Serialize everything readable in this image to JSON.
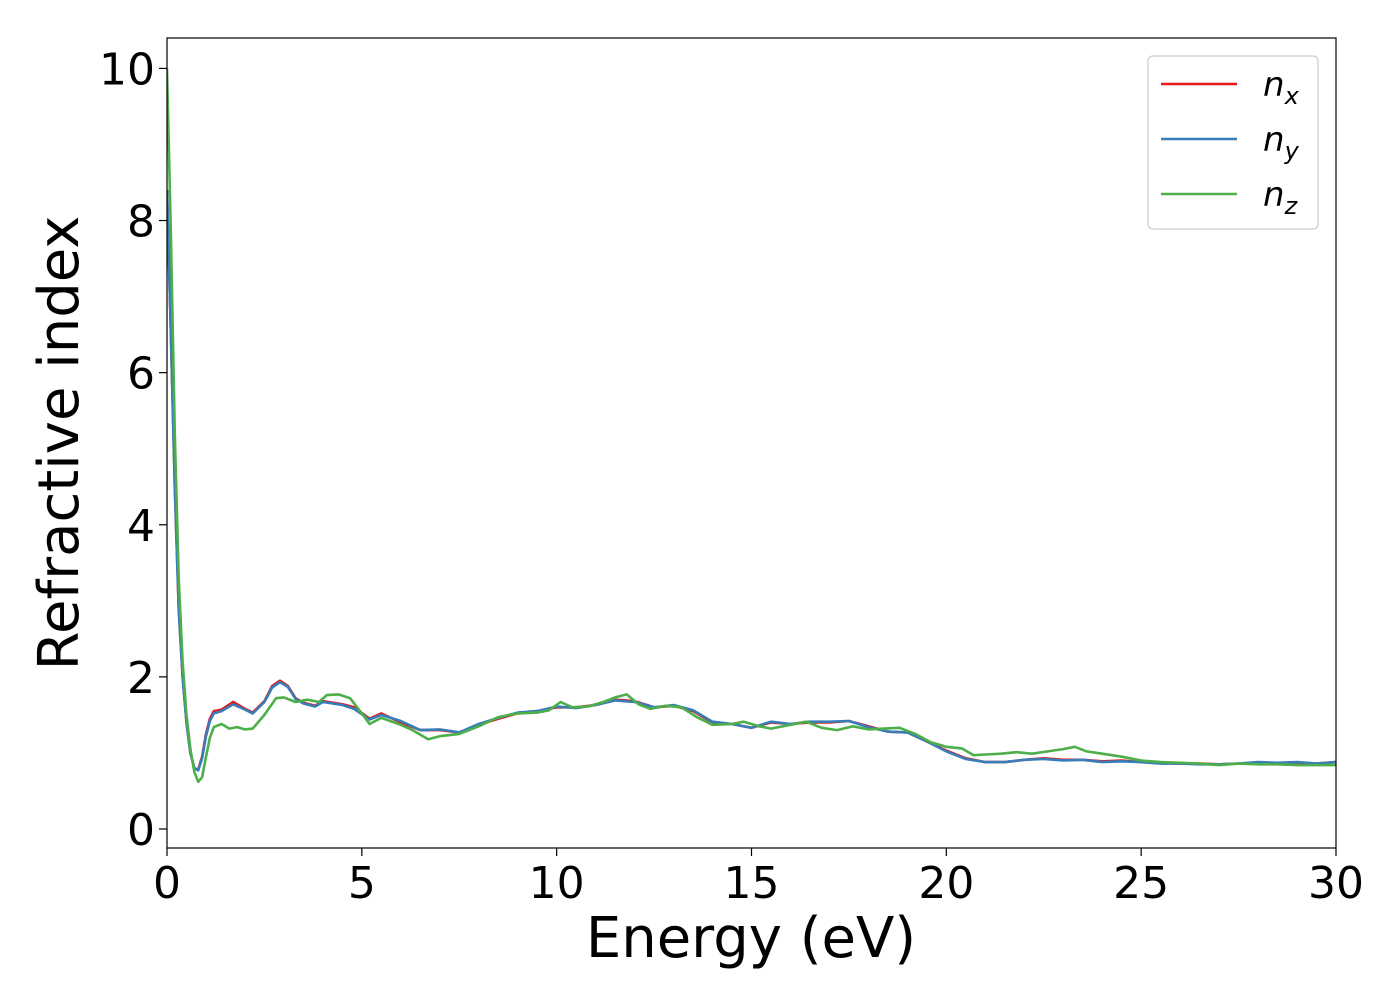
{
  "chart_data": {
    "type": "line",
    "xlabel": "Energy (eV)",
    "ylabel": "Refractive index",
    "xlim": [
      0,
      30
    ],
    "ylim": [
      -0.25,
      10.4
    ],
    "xticks": [
      0,
      5,
      10,
      15,
      20,
      25,
      30
    ],
    "yticks": [
      0,
      2,
      4,
      6,
      8,
      10
    ],
    "grid": false,
    "legend_position": "top-right",
    "series": [
      {
        "name": "n",
        "sub": "x",
        "color": "#e41a1c",
        "points": [
          [
            0,
            8.4
          ],
          [
            0.1,
            6.5
          ],
          [
            0.2,
            4.5
          ],
          [
            0.3,
            2.9
          ],
          [
            0.4,
            2.0
          ],
          [
            0.5,
            1.4
          ],
          [
            0.6,
            1.0
          ],
          [
            0.7,
            0.8
          ],
          [
            0.8,
            0.78
          ],
          [
            0.9,
            0.95
          ],
          [
            1.0,
            1.25
          ],
          [
            1.1,
            1.45
          ],
          [
            1.2,
            1.55
          ],
          [
            1.4,
            1.57
          ],
          [
            1.7,
            1.67
          ],
          [
            2.0,
            1.58
          ],
          [
            2.2,
            1.53
          ],
          [
            2.5,
            1.68
          ],
          [
            2.7,
            1.88
          ],
          [
            2.9,
            1.95
          ],
          [
            3.1,
            1.88
          ],
          [
            3.3,
            1.72
          ],
          [
            3.5,
            1.66
          ],
          [
            3.8,
            1.62
          ],
          [
            4.0,
            1.68
          ],
          [
            4.5,
            1.64
          ],
          [
            4.8,
            1.6
          ],
          [
            5.2,
            1.45
          ],
          [
            5.5,
            1.52
          ],
          [
            6.0,
            1.4
          ],
          [
            6.5,
            1.3
          ],
          [
            7.0,
            1.3
          ],
          [
            7.5,
            1.27
          ],
          [
            8.0,
            1.37
          ],
          [
            8.5,
            1.45
          ],
          [
            9.0,
            1.52
          ],
          [
            9.5,
            1.55
          ],
          [
            10.0,
            1.6
          ],
          [
            10.5,
            1.6
          ],
          [
            11.0,
            1.63
          ],
          [
            11.5,
            1.7
          ],
          [
            12.0,
            1.68
          ],
          [
            12.5,
            1.6
          ],
          [
            13.0,
            1.62
          ],
          [
            13.5,
            1.55
          ],
          [
            14.0,
            1.4
          ],
          [
            14.5,
            1.38
          ],
          [
            15.0,
            1.33
          ],
          [
            15.5,
            1.4
          ],
          [
            16.0,
            1.38
          ],
          [
            16.5,
            1.4
          ],
          [
            17.0,
            1.4
          ],
          [
            17.5,
            1.42
          ],
          [
            18.0,
            1.35
          ],
          [
            18.5,
            1.28
          ],
          [
            19.0,
            1.27
          ],
          [
            19.5,
            1.15
          ],
          [
            20.0,
            1.03
          ],
          [
            20.5,
            0.93
          ],
          [
            21.0,
            0.88
          ],
          [
            21.5,
            0.88
          ],
          [
            22.0,
            0.91
          ],
          [
            22.5,
            0.93
          ],
          [
            23.0,
            0.91
          ],
          [
            23.5,
            0.91
          ],
          [
            24.0,
            0.89
          ],
          [
            24.5,
            0.9
          ],
          [
            25.0,
            0.88
          ],
          [
            25.5,
            0.87
          ],
          [
            26.0,
            0.86
          ],
          [
            26.5,
            0.86
          ],
          [
            27.0,
            0.85
          ],
          [
            27.5,
            0.86
          ],
          [
            28.0,
            0.87
          ],
          [
            28.5,
            0.87
          ],
          [
            29.0,
            0.87
          ],
          [
            29.5,
            0.86
          ],
          [
            30.0,
            0.88
          ]
        ]
      },
      {
        "name": "n",
        "sub": "y",
        "color": "#377eb8",
        "points": [
          [
            0,
            8.4
          ],
          [
            0.1,
            6.5
          ],
          [
            0.2,
            4.5
          ],
          [
            0.3,
            2.9
          ],
          [
            0.4,
            2.0
          ],
          [
            0.5,
            1.4
          ],
          [
            0.6,
            1.0
          ],
          [
            0.7,
            0.8
          ],
          [
            0.8,
            0.77
          ],
          [
            0.9,
            0.93
          ],
          [
            1.0,
            1.22
          ],
          [
            1.1,
            1.42
          ],
          [
            1.2,
            1.52
          ],
          [
            1.4,
            1.55
          ],
          [
            1.7,
            1.64
          ],
          [
            2.0,
            1.57
          ],
          [
            2.2,
            1.52
          ],
          [
            2.5,
            1.67
          ],
          [
            2.7,
            1.86
          ],
          [
            2.9,
            1.93
          ],
          [
            3.1,
            1.87
          ],
          [
            3.3,
            1.71
          ],
          [
            3.5,
            1.65
          ],
          [
            3.8,
            1.61
          ],
          [
            4.0,
            1.67
          ],
          [
            4.5,
            1.63
          ],
          [
            4.8,
            1.58
          ],
          [
            5.2,
            1.44
          ],
          [
            5.5,
            1.5
          ],
          [
            6.0,
            1.42
          ],
          [
            6.5,
            1.3
          ],
          [
            7.0,
            1.31
          ],
          [
            7.5,
            1.27
          ],
          [
            8.0,
            1.38
          ],
          [
            8.5,
            1.46
          ],
          [
            9.0,
            1.53
          ],
          [
            9.5,
            1.55
          ],
          [
            10.0,
            1.61
          ],
          [
            10.5,
            1.59
          ],
          [
            11.0,
            1.63
          ],
          [
            11.5,
            1.69
          ],
          [
            12.0,
            1.67
          ],
          [
            12.5,
            1.6
          ],
          [
            13.0,
            1.63
          ],
          [
            13.5,
            1.56
          ],
          [
            14.0,
            1.41
          ],
          [
            14.5,
            1.38
          ],
          [
            15.0,
            1.33
          ],
          [
            15.5,
            1.41
          ],
          [
            16.0,
            1.38
          ],
          [
            16.5,
            1.41
          ],
          [
            17.0,
            1.41
          ],
          [
            17.5,
            1.42
          ],
          [
            18.0,
            1.34
          ],
          [
            18.5,
            1.28
          ],
          [
            19.0,
            1.27
          ],
          [
            19.5,
            1.15
          ],
          [
            20.0,
            1.02
          ],
          [
            20.5,
            0.92
          ],
          [
            21.0,
            0.88
          ],
          [
            21.5,
            0.88
          ],
          [
            22.0,
            0.91
          ],
          [
            22.5,
            0.92
          ],
          [
            23.0,
            0.9
          ],
          [
            23.5,
            0.91
          ],
          [
            24.0,
            0.88
          ],
          [
            24.5,
            0.89
          ],
          [
            25.0,
            0.88
          ],
          [
            25.5,
            0.86
          ],
          [
            26.0,
            0.86
          ],
          [
            26.5,
            0.85
          ],
          [
            27.0,
            0.85
          ],
          [
            27.5,
            0.86
          ],
          [
            28.0,
            0.88
          ],
          [
            28.5,
            0.87
          ],
          [
            29.0,
            0.88
          ],
          [
            29.5,
            0.86
          ],
          [
            30.0,
            0.88
          ]
        ]
      },
      {
        "name": "n",
        "sub": "z",
        "color": "#4daf4a",
        "points": [
          [
            0,
            10.0
          ],
          [
            0.1,
            7.8
          ],
          [
            0.2,
            5.2
          ],
          [
            0.3,
            3.3
          ],
          [
            0.4,
            2.2
          ],
          [
            0.5,
            1.5
          ],
          [
            0.6,
            1.05
          ],
          [
            0.7,
            0.75
          ],
          [
            0.8,
            0.62
          ],
          [
            0.9,
            0.68
          ],
          [
            1.0,
            0.95
          ],
          [
            1.1,
            1.2
          ],
          [
            1.2,
            1.34
          ],
          [
            1.4,
            1.38
          ],
          [
            1.6,
            1.32
          ],
          [
            1.8,
            1.34
          ],
          [
            2.0,
            1.31
          ],
          [
            2.2,
            1.32
          ],
          [
            2.5,
            1.5
          ],
          [
            2.8,
            1.72
          ],
          [
            3.0,
            1.73
          ],
          [
            3.3,
            1.67
          ],
          [
            3.6,
            1.7
          ],
          [
            3.9,
            1.67
          ],
          [
            4.1,
            1.76
          ],
          [
            4.4,
            1.77
          ],
          [
            4.7,
            1.72
          ],
          [
            5.0,
            1.52
          ],
          [
            5.2,
            1.38
          ],
          [
            5.5,
            1.46
          ],
          [
            6.0,
            1.37
          ],
          [
            6.3,
            1.3
          ],
          [
            6.7,
            1.18
          ],
          [
            7.0,
            1.22
          ],
          [
            7.5,
            1.25
          ],
          [
            8.0,
            1.35
          ],
          [
            8.5,
            1.47
          ],
          [
            9.0,
            1.52
          ],
          [
            9.5,
            1.53
          ],
          [
            9.8,
            1.56
          ],
          [
            10.1,
            1.67
          ],
          [
            10.4,
            1.6
          ],
          [
            10.8,
            1.61
          ],
          [
            11.2,
            1.67
          ],
          [
            11.5,
            1.73
          ],
          [
            11.8,
            1.77
          ],
          [
            12.1,
            1.64
          ],
          [
            12.4,
            1.58
          ],
          [
            12.8,
            1.62
          ],
          [
            13.2,
            1.6
          ],
          [
            13.6,
            1.47
          ],
          [
            14.0,
            1.37
          ],
          [
            14.5,
            1.38
          ],
          [
            14.8,
            1.41
          ],
          [
            15.2,
            1.35
          ],
          [
            15.5,
            1.32
          ],
          [
            16.0,
            1.37
          ],
          [
            16.4,
            1.41
          ],
          [
            16.8,
            1.33
          ],
          [
            17.2,
            1.3
          ],
          [
            17.6,
            1.35
          ],
          [
            18.0,
            1.31
          ],
          [
            18.4,
            1.32
          ],
          [
            18.8,
            1.33
          ],
          [
            19.2,
            1.25
          ],
          [
            19.6,
            1.14
          ],
          [
            20.0,
            1.08
          ],
          [
            20.4,
            1.06
          ],
          [
            20.7,
            0.97
          ],
          [
            21.0,
            0.98
          ],
          [
            21.4,
            0.99
          ],
          [
            21.8,
            1.01
          ],
          [
            22.2,
            0.99
          ],
          [
            22.6,
            1.02
          ],
          [
            23.0,
            1.05
          ],
          [
            23.3,
            1.08
          ],
          [
            23.6,
            1.02
          ],
          [
            24.0,
            0.99
          ],
          [
            24.5,
            0.95
          ],
          [
            25.0,
            0.9
          ],
          [
            25.5,
            0.88
          ],
          [
            26.0,
            0.87
          ],
          [
            26.5,
            0.86
          ],
          [
            27.0,
            0.84
          ],
          [
            27.5,
            0.86
          ],
          [
            28.0,
            0.85
          ],
          [
            28.5,
            0.85
          ],
          [
            29.0,
            0.84
          ],
          [
            29.5,
            0.84
          ],
          [
            30.0,
            0.84
          ]
        ]
      }
    ]
  }
}
